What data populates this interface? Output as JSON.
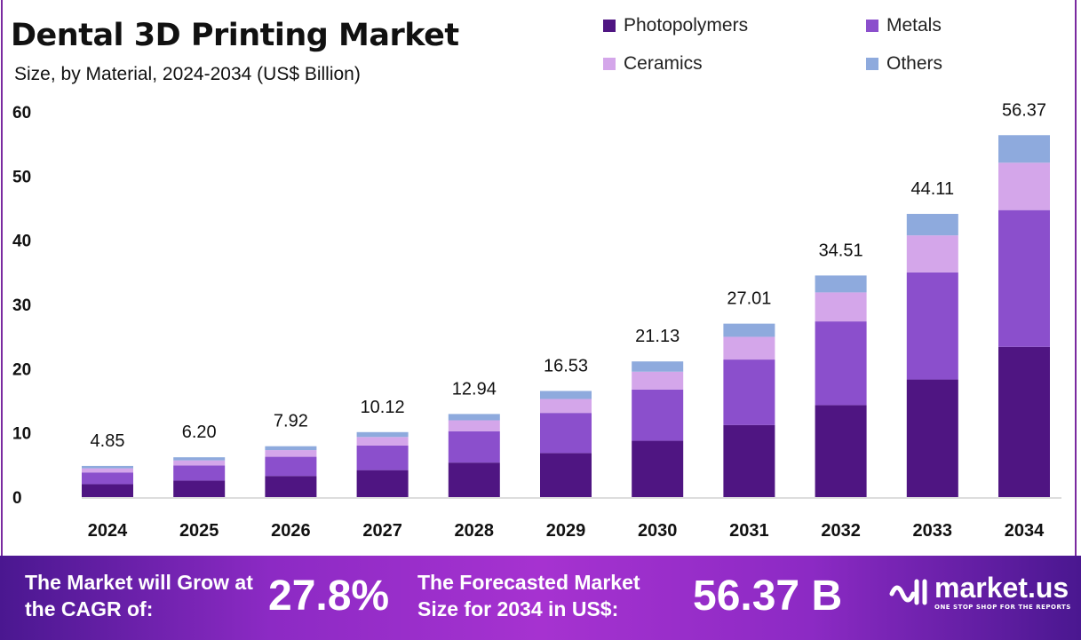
{
  "chart_data": {
    "type": "bar",
    "stacked": true,
    "title": "Dental 3D Printing Market",
    "subtitle": "Size, by Material, 2024-2034 (US$ Billion)",
    "categories": [
      "2024",
      "2025",
      "2026",
      "2027",
      "2028",
      "2029",
      "2030",
      "2031",
      "2032",
      "2033",
      "2034"
    ],
    "totals": [
      "4.85",
      "6.20",
      "7.92",
      "10.12",
      "12.94",
      "16.53",
      "21.13",
      "27.01",
      "34.51",
      "44.11",
      "56.37"
    ],
    "series": [
      {
        "name": "Photopolymers",
        "color": "#4f1582",
        "values": [
          2.01,
          2.57,
          3.29,
          4.2,
          5.37,
          6.86,
          8.77,
          11.21,
          14.32,
          18.31,
          23.39
        ]
      },
      {
        "name": "Metals",
        "color": "#8b4fcc",
        "values": [
          1.83,
          2.34,
          2.99,
          3.83,
          4.89,
          6.25,
          7.99,
          10.21,
          13.04,
          16.67,
          21.31
        ]
      },
      {
        "name": "Ceramics",
        "color": "#d4a6ea",
        "values": [
          0.64,
          0.81,
          1.04,
          1.33,
          1.7,
          2.17,
          2.77,
          3.54,
          4.52,
          5.78,
          7.38
        ]
      },
      {
        "name": "Others",
        "color": "#8eaadd",
        "values": [
          0.37,
          0.48,
          0.6,
          0.76,
          0.98,
          1.25,
          1.6,
          2.05,
          2.63,
          3.35,
          4.29
        ]
      }
    ],
    "yticks": [
      "0",
      "10",
      "20",
      "30",
      "40",
      "50",
      "60"
    ],
    "ylim": [
      0,
      60
    ],
    "grid": false,
    "legend_position": "top-right"
  },
  "footer": {
    "cagr_label": "The Market will Grow at the CAGR of:",
    "cagr_value": "27.8%",
    "forecast_label": "The Forecasted Market Size for 2034 in US$:",
    "forecast_value": "56.37 B",
    "logo_name": "market.us",
    "logo_tagline": "ONE STOP SHOP FOR THE REPORTS"
  }
}
